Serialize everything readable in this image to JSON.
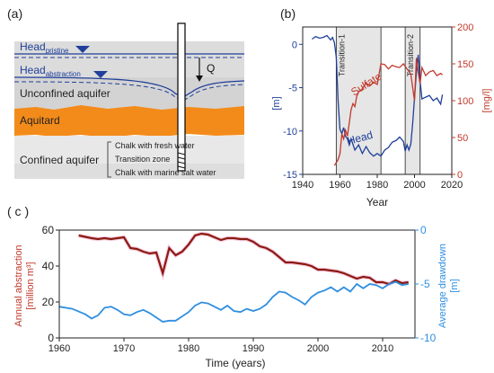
{
  "panel_a": {
    "label": "(a)",
    "head_pristine": "Head",
    "head_pristine_sub": "pristine",
    "head_abstraction": "Head",
    "head_abstraction_sub": "abstraction",
    "q_label": "Q",
    "unconfined": "Unconfined aquifer",
    "aquitard": "Aquitard",
    "confined": "Confined aquifer",
    "chalk_fresh": "Chalk with fresh water",
    "transition_zone": "Transition zone",
    "chalk_salt": "Chalk with marine salt water",
    "colors": {
      "sky": "#d9d9d9",
      "unconfined": "#d6d6d6",
      "aquitard": "#f08c1e",
      "confined": "#e6e6e6",
      "head_line": "#1f3f9a"
    }
  },
  "chart_data": [
    {
      "type": "line",
      "panel_label": "(b)",
      "xlabel": "Year",
      "ylabel_left": "[m]",
      "ylabel_right": "[mg/l]",
      "xlim": [
        1940,
        2020
      ],
      "xticks": [
        1940,
        1960,
        1980,
        2000,
        2020
      ],
      "ylim_left": [
        -15,
        2
      ],
      "yticks_left": [
        0,
        -5,
        -10,
        -15
      ],
      "ylim_right": [
        0,
        200
      ],
      "yticks_right": [
        0,
        50,
        100,
        150,
        200
      ],
      "shaded_periods": [
        {
          "label": "Transition-1",
          "start": 1958,
          "end": 1982
        },
        {
          "label": "Transition-2",
          "start": 1995,
          "end": 2003
        }
      ],
      "series": [
        {
          "name": "Head",
          "axis": "left",
          "color": "#1f3f9a",
          "x": [
            1945,
            1947,
            1949,
            1951,
            1953,
            1955,
            1956,
            1957,
            1958,
            1959,
            1960,
            1961,
            1962,
            1963,
            1964,
            1965,
            1966,
            1968,
            1970,
            1972,
            1974,
            1976,
            1978,
            1980,
            1982,
            1984,
            1986,
            1988,
            1990,
            1992,
            1994,
            1995,
            1996,
            1997,
            1998,
            1999,
            2000,
            2001,
            2002,
            2003,
            2004,
            2006,
            2008,
            2010,
            2012,
            2014,
            2015
          ],
          "y": [
            0.6,
            0.9,
            0.7,
            0.8,
            1.0,
            0.5,
            0.8,
            0.2,
            -1.5,
            -6.5,
            -9.8,
            -10.3,
            -9.6,
            -10.6,
            -10.9,
            -11.6,
            -10.9,
            -12.2,
            -11.6,
            -12.6,
            -11.8,
            -12.5,
            -12.9,
            -12.6,
            -12.9,
            -12.2,
            -11.9,
            -11.3,
            -11.1,
            -10.7,
            -11.2,
            -12.3,
            -11.6,
            -12.2,
            -11.5,
            -9.2,
            -6.2,
            -3.2,
            -1.2,
            -4.2,
            -6.3,
            -6.1,
            -5.9,
            -6.5,
            -6.2,
            -6.9,
            -5.8
          ]
        },
        {
          "name": "Sulfate",
          "axis": "right",
          "color": "#c0392b",
          "x": [
            1957,
            1958,
            1959,
            1960,
            1961,
            1962,
            1963,
            1964,
            1965,
            1966,
            1967,
            1968,
            1969,
            1970,
            1972,
            1974,
            1976,
            1978,
            1980,
            1982,
            1984,
            1986,
            1988,
            1990,
            1992,
            1994,
            1996,
            1998,
            2000,
            2001,
            2002,
            2003,
            2004,
            2006,
            2008,
            2010,
            2012,
            2014,
            2015
          ],
          "y": [
            12,
            16,
            20,
            28,
            55,
            48,
            60,
            52,
            70,
            88,
            96,
            92,
            106,
            112,
            116,
            124,
            120,
            125,
            122,
            150,
            149,
            143,
            148,
            146,
            145,
            150,
            143,
            136,
            100,
            158,
            138,
            123,
            145,
            134,
            139,
            141,
            134,
            137,
            135
          ]
        }
      ]
    },
    {
      "type": "line",
      "panel_label": "( c )",
      "xlabel": "Time (years)",
      "ylabel_left": "Annual abstraction\n[million m³]",
      "ylabel_right": "Average drawdown\n[m]",
      "xlim": [
        1960,
        2015
      ],
      "xticks": [
        1960,
        1970,
        1980,
        1990,
        2000,
        2010
      ],
      "ylim_left": [
        0,
        60
      ],
      "yticks_left": [
        0,
        20,
        40,
        60
      ],
      "ylim_right": [
        -10,
        0
      ],
      "yticks_right": [
        0,
        -5,
        -10
      ],
      "series": [
        {
          "name": "Annual abstraction",
          "axis": "left",
          "color": "#8b1a10",
          "x": [
            1963,
            1965,
            1966,
            1967,
            1968,
            1969,
            1970,
            1971,
            1972,
            1973,
            1974,
            1975,
            1976,
            1977,
            1978,
            1979,
            1980,
            1981,
            1982,
            1983,
            1984,
            1985,
            1986,
            1987,
            1988,
            1989,
            1990,
            1991,
            1992,
            1993,
            1994,
            1995,
            1996,
            1997,
            1998,
            1999,
            2000,
            2001,
            2002,
            2003,
            2004,
            2005,
            2006,
            2007,
            2008,
            2009,
            2010,
            2011,
            2012,
            2013,
            2014
          ],
          "y": [
            57,
            55.5,
            55,
            55.5,
            55,
            55.5,
            56,
            50,
            49.5,
            48,
            47,
            47.5,
            36,
            50,
            46,
            48,
            52,
            57,
            58,
            57.5,
            56,
            54.5,
            55.5,
            55.5,
            55,
            55,
            53.5,
            51,
            50,
            48,
            45,
            42,
            42,
            41.5,
            41,
            40,
            38,
            38,
            37.5,
            37,
            36,
            34.5,
            33,
            34,
            33.5,
            31,
            31,
            30,
            32,
            30.5,
            31
          ]
        },
        {
          "name": "Average drawdown",
          "axis": "right",
          "color": "#2f8fe0",
          "x": [
            1960,
            1962,
            1964,
            1965,
            1966,
            1967,
            1968,
            1969,
            1970,
            1971,
            1972,
            1973,
            1974,
            1975,
            1976,
            1977,
            1978,
            1979,
            1980,
            1981,
            1982,
            1983,
            1984,
            1985,
            1986,
            1987,
            1988,
            1989,
            1990,
            1991,
            1992,
            1993,
            1994,
            1995,
            1996,
            1997,
            1998,
            1999,
            2000,
            2001,
            2002,
            2003,
            2004,
            2005,
            2006,
            2007,
            2008,
            2009,
            2010,
            2011,
            2012,
            2013,
            2014
          ],
          "y": [
            -7.1,
            -7.3,
            -7.8,
            -8.2,
            -7.9,
            -7.2,
            -7.1,
            -7.4,
            -7.8,
            -7.9,
            -7.6,
            -7.4,
            -7.7,
            -8.1,
            -8.5,
            -8.4,
            -8.4,
            -8.0,
            -7.6,
            -7.0,
            -6.7,
            -6.8,
            -7.1,
            -7.4,
            -7.0,
            -7.5,
            -7.6,
            -7.3,
            -7.5,
            -7.3,
            -6.9,
            -6.2,
            -5.7,
            -5.8,
            -6.2,
            -6.5,
            -6.9,
            -6.2,
            -5.8,
            -5.6,
            -5.3,
            -5.7,
            -5.3,
            -5.7,
            -5.0,
            -5.4,
            -5.0,
            -5.1,
            -5.4,
            -5.0,
            -4.8,
            -5.1,
            -5.0
          ]
        }
      ]
    }
  ]
}
